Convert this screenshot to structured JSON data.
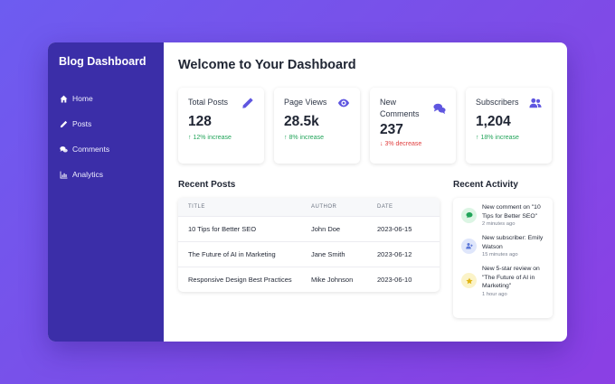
{
  "sidebar": {
    "brand": "Blog Dashboard",
    "items": [
      {
        "label": "Home",
        "icon": "home-icon"
      },
      {
        "label": "Posts",
        "icon": "pencil-icon"
      },
      {
        "label": "Comments",
        "icon": "comments-icon"
      },
      {
        "label": "Analytics",
        "icon": "chart-icon"
      }
    ]
  },
  "main": {
    "title": "Welcome to Your Dashboard",
    "cards": [
      {
        "label": "Total Posts",
        "value": "128",
        "trend": "12% increase",
        "trend_dir": "up",
        "icon": "pencil-icon"
      },
      {
        "label": "Page Views",
        "value": "28.5k",
        "trend": "8% increase",
        "trend_dir": "up",
        "icon": "eye-icon"
      },
      {
        "label": "New Comments",
        "value": "237",
        "trend": "3% decrease",
        "trend_dir": "down",
        "icon": "comments-icon"
      },
      {
        "label": "Subscribers",
        "value": "1,204",
        "trend": "18% increase",
        "trend_dir": "up",
        "icon": "users-icon"
      }
    ],
    "recent_posts": {
      "title": "Recent Posts",
      "columns": [
        "TITLE",
        "AUTHOR",
        "DATE"
      ],
      "rows": [
        [
          "10 Tips for Better SEO",
          "John Doe",
          "2023-06-15"
        ],
        [
          "The Future of AI in Marketing",
          "Jane Smith",
          "2023-06-12"
        ],
        [
          "Responsive Design Best Practices",
          "Mike Johnson",
          "2023-06-10"
        ]
      ]
    },
    "recent_activity": {
      "title": "Recent Activity",
      "items": [
        {
          "text": "New comment on \"10 Tips for Better SEO\"",
          "time": "2 minutes ago",
          "icon": "comment-icon"
        },
        {
          "text": "New subscriber: Emily Watson",
          "time": "15 minutes ago",
          "icon": "user-plus-icon"
        },
        {
          "text": "New 5-star review on \"The Future of AI in Marketing\"",
          "time": "1 hour ago",
          "icon": "star-icon"
        }
      ]
    }
  },
  "colors": {
    "sidebar_bg": "#3b2ea8",
    "accent": "#5f56e0",
    "up": "#22a45a",
    "down": "#e03e3e"
  }
}
